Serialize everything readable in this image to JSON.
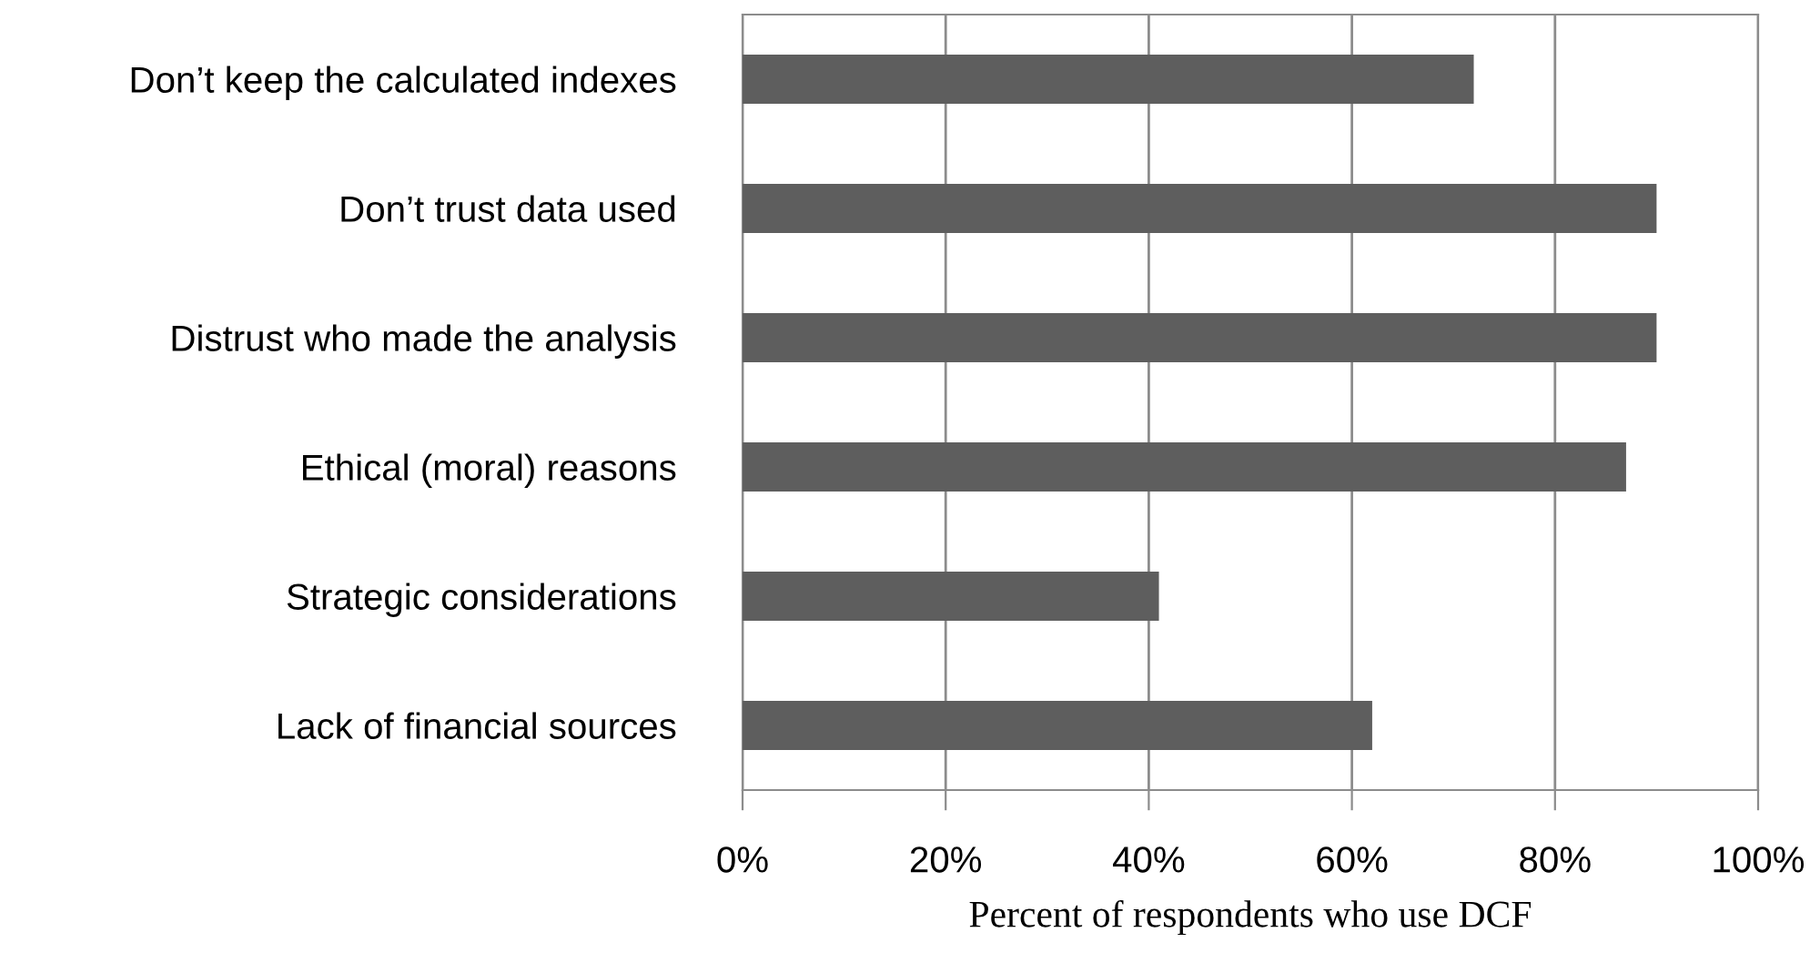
{
  "chart_data": {
    "type": "bar",
    "orientation": "horizontal",
    "xlabel": "Percent of respondents who use DCF",
    "categories": [
      "Don’t keep the calculated indexes",
      "Don’t trust data used",
      "Distrust who made the analysis",
      "Ethical (moral) reasons",
      "Strategic considerations",
      "Lack of financial sources"
    ],
    "values": [
      72,
      90,
      90,
      87,
      41,
      62
    ],
    "color": "#5e5e5e",
    "xlim": [
      0,
      100
    ],
    "xticks": [
      {
        "value": 0,
        "label": "0%"
      },
      {
        "value": 20,
        "label": "20%"
      },
      {
        "value": 40,
        "label": "40%"
      },
      {
        "value": 60,
        "label": "60%"
      },
      {
        "value": 80,
        "label": "80%"
      },
      {
        "value": 100,
        "label": "100%"
      }
    ],
    "grid": "x",
    "legend": false
  }
}
